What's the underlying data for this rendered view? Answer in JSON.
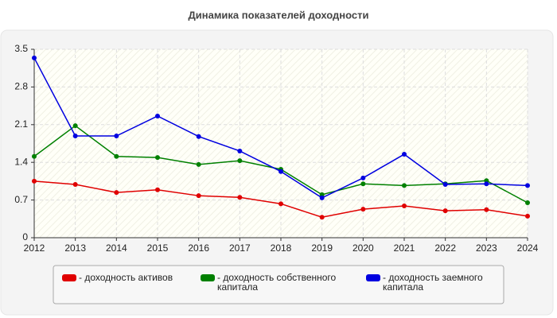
{
  "chart_data": {
    "type": "line",
    "title": "Динамика показателей доходности",
    "x": [
      2012,
      2013,
      2014,
      2015,
      2016,
      2017,
      2018,
      2019,
      2020,
      2021,
      2022,
      2023,
      2024
    ],
    "xlim": [
      2012,
      2024
    ],
    "xticks": [
      2012,
      2013,
      2014,
      2015,
      2016,
      2017,
      2018,
      2019,
      2020,
      2021,
      2022,
      2023,
      2024
    ],
    "ylim": [
      0,
      3.5
    ],
    "yticks": [
      0,
      0.7,
      1.4,
      2.1,
      2.8,
      3.5
    ],
    "grid": true,
    "series": [
      {
        "name": "- доходность активов",
        "color": "#e00000",
        "values": [
          1.05,
          0.99,
          0.84,
          0.89,
          0.78,
          0.75,
          0.63,
          0.38,
          0.53,
          0.59,
          0.5,
          0.52,
          0.4
        ]
      },
      {
        "name": "- доходность собственного капитала",
        "color": "#008000",
        "values": [
          1.51,
          2.08,
          1.51,
          1.49,
          1.36,
          1.43,
          1.27,
          0.8,
          1.0,
          0.97,
          1.0,
          1.06,
          0.65
        ]
      },
      {
        "name": "- доходность заемного капитала",
        "color": "#0000e0",
        "values": [
          3.34,
          1.89,
          1.89,
          2.26,
          1.88,
          1.61,
          1.23,
          0.74,
          1.11,
          1.55,
          0.99,
          1.0,
          0.97
        ]
      }
    ]
  }
}
